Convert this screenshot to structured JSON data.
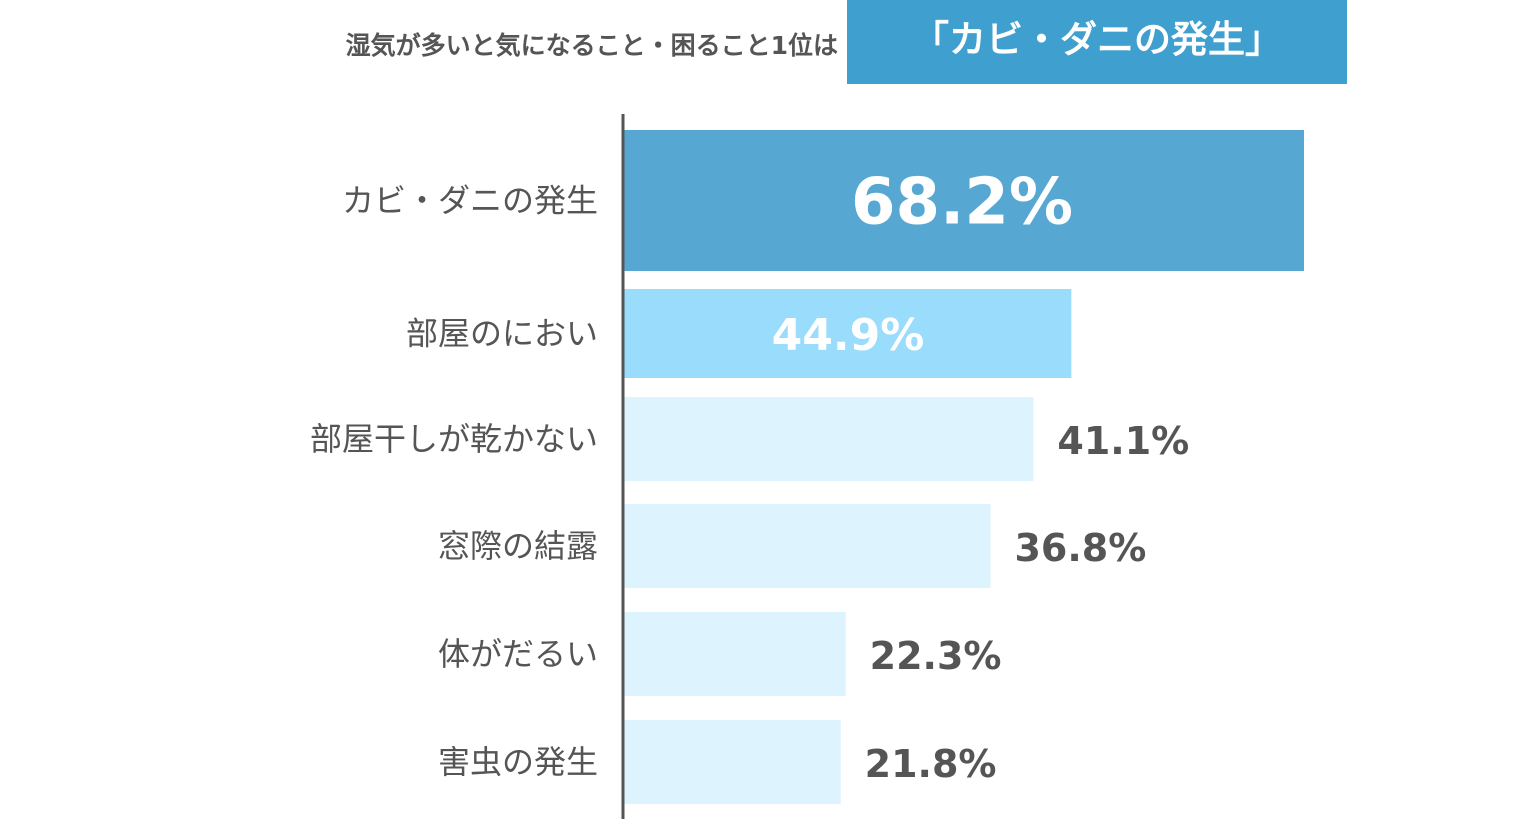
{
  "header": {
    "title": "湿気が多いと気になること・困ること1位は",
    "highlight": "「カビ・ダニの発生」"
  },
  "colors": {
    "header_box": "#3fa0cf",
    "bar_first": "#56a8d3",
    "bar_second": "#99dcfb",
    "bar_rest": "#ddf3fd",
    "label_text": "#555555",
    "value_on_bar": "#ffffff",
    "value_outside": "#555555",
    "axis": "#555555"
  },
  "chart_data": {
    "type": "bar",
    "orientation": "horizontal",
    "categories": [
      "カビ・ダニの発生",
      "部屋のにおい",
      "部屋干しが乾かない",
      "窓際の結露",
      "体がだるい",
      "害虫の発生"
    ],
    "values": [
      68.2,
      44.9,
      41.1,
      36.8,
      22.3,
      21.8
    ],
    "value_labels": [
      "68.2%",
      "44.9%",
      "41.1%",
      "36.8%",
      "22.3%",
      "21.8%"
    ],
    "unit": "%",
    "xlim": [
      0,
      70
    ],
    "grid": false,
    "legend": "none"
  }
}
